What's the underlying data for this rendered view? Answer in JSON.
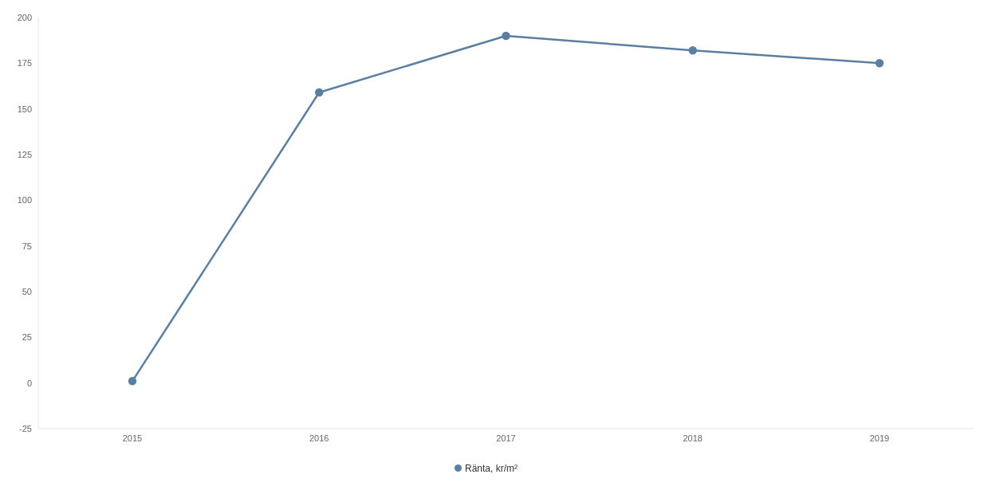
{
  "chart_data": {
    "type": "line",
    "categories": [
      "2015",
      "2016",
      "2017",
      "2018",
      "2019"
    ],
    "series": [
      {
        "name": "Ränta, kr/m²",
        "color": "#5b7fa0",
        "values": [
          1,
          159,
          190,
          182,
          175
        ]
      }
    ],
    "ylim": [
      -25,
      200
    ],
    "yticks": [
      -25,
      0,
      25,
      50,
      75,
      100,
      125,
      150,
      175,
      200
    ],
    "grid": false,
    "legend": "bottom",
    "marker": "circle",
    "line_style": "solid"
  }
}
